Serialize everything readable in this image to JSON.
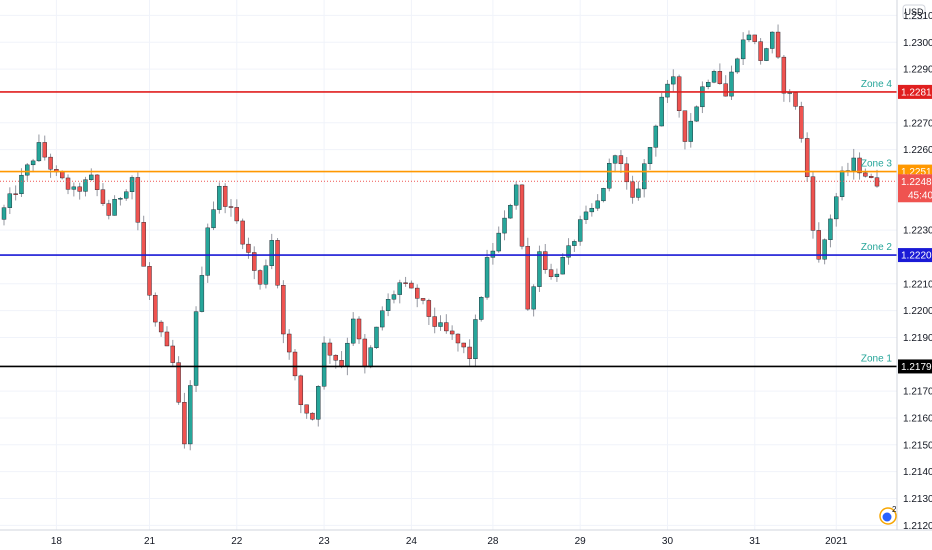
{
  "chart_data": {
    "type": "candlestick",
    "currency": "USD",
    "y_ticks": [
      1.231,
      1.23,
      1.229,
      1.227,
      1.226,
      1.223,
      1.221,
      1.22,
      1.219,
      1.217,
      1.216,
      1.215,
      1.214,
      1.213,
      1.212
    ],
    "ylim": [
      1.2119,
      1.2315
    ],
    "x_ticks": [
      {
        "label": "18",
        "index": 9
      },
      {
        "label": "21",
        "index": 25
      },
      {
        "label": "22",
        "index": 40
      },
      {
        "label": "23",
        "index": 55
      },
      {
        "label": "24",
        "index": 70
      },
      {
        "label": "28",
        "index": 84
      },
      {
        "label": "29",
        "index": 99
      },
      {
        "label": "30",
        "index": 114
      },
      {
        "label": "31",
        "index": 129
      },
      {
        "label": "2021",
        "index": 143
      }
    ],
    "zones": [
      {
        "name": "Zone 4",
        "price": 1.22815,
        "price_label": "1.22815",
        "color": "#e01f1f"
      },
      {
        "name": "Zone 3",
        "price": 1.22518,
        "price_label": "1.22518",
        "color": "#ff9800"
      },
      {
        "name": "Zone 2",
        "price": 1.22207,
        "price_label": "1.22207",
        "color": "#1a1ad6"
      },
      {
        "name": "Zone 1",
        "price": 1.21792,
        "price_label": "1.21792",
        "color": "#000000"
      }
    ],
    "current_price": {
      "price": 1.22482,
      "label": "1.22482",
      "countdown": "45:40",
      "color": "#ef5350"
    },
    "up_color": "#26a69a",
    "down_color": "#ef5350",
    "keypoints": [
      [
        0,
        1.2234
      ],
      [
        3,
        1.2245
      ],
      [
        7,
        1.2261
      ],
      [
        10,
        1.225
      ],
      [
        13,
        1.2244
      ],
      [
        16,
        1.2249
      ],
      [
        19,
        1.2236
      ],
      [
        23,
        1.225
      ],
      [
        25,
        1.2216
      ],
      [
        27,
        1.2195
      ],
      [
        30,
        1.218
      ],
      [
        32,
        1.2149
      ],
      [
        34,
        1.2198
      ],
      [
        36,
        1.2232
      ],
      [
        38,
        1.2245
      ],
      [
        41,
        1.2233
      ],
      [
        45,
        1.2209
      ],
      [
        47,
        1.2227
      ],
      [
        49,
        1.2193
      ],
      [
        52,
        1.2165
      ],
      [
        54,
        1.216
      ],
      [
        56,
        1.2187
      ],
      [
        59,
        1.218
      ],
      [
        61,
        1.2198
      ],
      [
        63,
        1.2178
      ],
      [
        66,
        1.22
      ],
      [
        69,
        1.221
      ],
      [
        72,
        1.2205
      ],
      [
        75,
        1.2195
      ],
      [
        78,
        1.219
      ],
      [
        81,
        1.2183
      ],
      [
        84,
        1.2218
      ],
      [
        87,
        1.2233
      ],
      [
        89,
        1.2248
      ],
      [
        91,
        1.22
      ],
      [
        93,
        1.2222
      ],
      [
        95,
        1.2212
      ],
      [
        98,
        1.2222
      ],
      [
        100,
        1.2232
      ],
      [
        103,
        1.224
      ],
      [
        106,
        1.226
      ],
      [
        109,
        1.224
      ],
      [
        112,
        1.2261
      ],
      [
        114,
        1.228
      ],
      [
        116,
        1.2285
      ],
      [
        118,
        1.2265
      ],
      [
        121,
        1.2283
      ],
      [
        123,
        1.2291
      ],
      [
        125,
        1.228
      ],
      [
        127,
        1.2296
      ],
      [
        129,
        1.2304
      ],
      [
        131,
        1.2294
      ],
      [
        133,
        1.2302
      ],
      [
        135,
        1.2283
      ],
      [
        137,
        1.2277
      ],
      [
        139,
        1.225
      ],
      [
        140,
        1.2232
      ],
      [
        141,
        1.2218
      ],
      [
        143,
        1.2235
      ],
      [
        145,
        1.225
      ],
      [
        147,
        1.2255
      ],
      [
        149,
        1.2251
      ],
      [
        150,
        1.2248
      ]
    ]
  }
}
